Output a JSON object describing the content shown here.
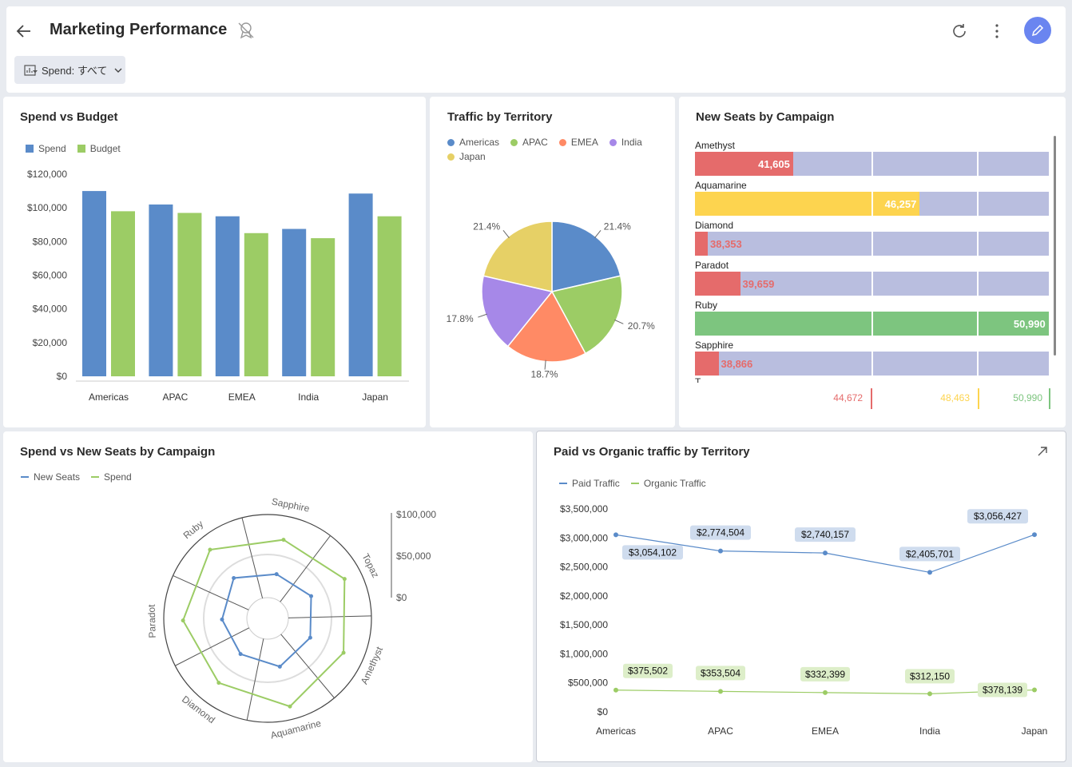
{
  "header": {
    "title": "Marketing Performance",
    "filter_label": "Spend: すべて",
    "icons": {
      "back": "arrow-left-icon",
      "ribbon": "badge-off-icon",
      "refresh": "refresh-icon",
      "more": "more-vertical-icon",
      "edit": "pencil-icon"
    },
    "edit_color": "#6a85f0"
  },
  "spend_budget": {
    "title": "Spend vs Budget",
    "chart_data": {
      "type": "bar",
      "categories": [
        "Americas",
        "APAC",
        "EMEA",
        "India",
        "Japan"
      ],
      "series": [
        {
          "name": "Spend",
          "values": [
            110000,
            102000,
            95000,
            87500,
            108500
          ],
          "color": "#5a8bc9"
        },
        {
          "name": "Budget",
          "values": [
            98000,
            97000,
            85000,
            82000,
            95000
          ],
          "color": "#9ccc65"
        }
      ],
      "yticks": [
        "$0",
        "$20,000",
        "$40,000",
        "$60,000",
        "$80,000",
        "$100,000",
        "$120,000"
      ],
      "ylim": [
        0,
        120000
      ],
      "legend": "top-left"
    }
  },
  "traffic_territory": {
    "title": "Traffic by Territory",
    "chart_data": {
      "type": "pie",
      "labels": [
        "Americas",
        "APAC",
        "EMEA",
        "India",
        "Japan"
      ],
      "values": [
        21.4,
        20.7,
        18.7,
        17.8,
        21.4
      ],
      "value_labels": [
        "21.4%",
        "20.7%",
        "18.7%",
        "17.8%",
        "21.4%"
      ],
      "colors": [
        "#5a8bc9",
        "#9ccc65",
        "#ff8a65",
        "#a688e8",
        "#e6d066"
      ],
      "legend": "top-left"
    }
  },
  "seats_campaign": {
    "title": "New Seats by Campaign",
    "chart_data": {
      "type": "bar",
      "orientation": "horizontal",
      "categories": [
        "Amethyst",
        "Aquamarine",
        "Diamond",
        "Paradot",
        "Ruby",
        "Sapphire"
      ],
      "values": [
        41605,
        46257,
        38353,
        39659,
        50990,
        38866
      ],
      "value_labels": [
        "41,605",
        "46,257",
        "38,353",
        "39,659",
        "50,990",
        "38,866"
      ],
      "colors": [
        "#e56b6b",
        "#fdd44f",
        "#e56b6b",
        "#e56b6b",
        "#7dc57f",
        "#e56b6b"
      ],
      "scale_min": 38000,
      "scale_max": 51000,
      "thresholds": [
        {
          "label": "44,672",
          "color": "#e56b6b"
        },
        {
          "label": "48,463",
          "color": "#fdd44f"
        },
        {
          "label": "50,990",
          "color": "#7dc57f"
        }
      ],
      "partial_next_label": "T"
    }
  },
  "radar": {
    "title": "Spend vs New Seats by Campaign",
    "chart_data": {
      "type": "radar",
      "axes": [
        "Sapphire",
        "Topaz",
        "Amethyst",
        "Aquamarine",
        "Diamond",
        "Paradot",
        "Ruby"
      ],
      "series": [
        {
          "name": "New Seats",
          "values": [
            38866,
            45000,
            41605,
            46257,
            38353,
            39659,
            50990
          ],
          "color": "#5a8bc9"
        },
        {
          "name": "Spend",
          "values": [
            95000,
            105000,
            100000,
            112000,
            96000,
            102000,
            110000
          ],
          "color": "#9ccc65"
        }
      ],
      "scale_ticks": [
        "$100,000",
        "$50,000",
        "$0"
      ]
    }
  },
  "paid_organic": {
    "title": "Paid vs Organic traffic by Territory",
    "chart_data": {
      "type": "line",
      "categories": [
        "Americas",
        "APAC",
        "EMEA",
        "India",
        "Japan"
      ],
      "series": [
        {
          "name": "Paid Traffic",
          "values": [
            3054102,
            2774504,
            2740157,
            2405701,
            3056427
          ],
          "labels": [
            "$3,054,102",
            "$2,774,504",
            "$2,740,157",
            "$2,405,701",
            "$3,056,427"
          ],
          "color": "#5a8bc9",
          "label_bg": "#cfdcee"
        },
        {
          "name": "Organic Traffic",
          "values": [
            375502,
            353504,
            332399,
            312150,
            378139
          ],
          "labels": [
            "$375,502",
            "$353,504",
            "$332,399",
            "$312,150",
            "$378,139"
          ],
          "color": "#9ccc65",
          "label_bg": "#ddeec9"
        }
      ],
      "yticks": [
        "$0",
        "$500,000",
        "$1,000,000",
        "$1,500,000",
        "$2,000,000",
        "$2,500,000",
        "$3,000,000",
        "$3,500,000"
      ],
      "ylim": [
        0,
        3500000
      ],
      "expand_icon": "expand-arrow-icon"
    }
  }
}
